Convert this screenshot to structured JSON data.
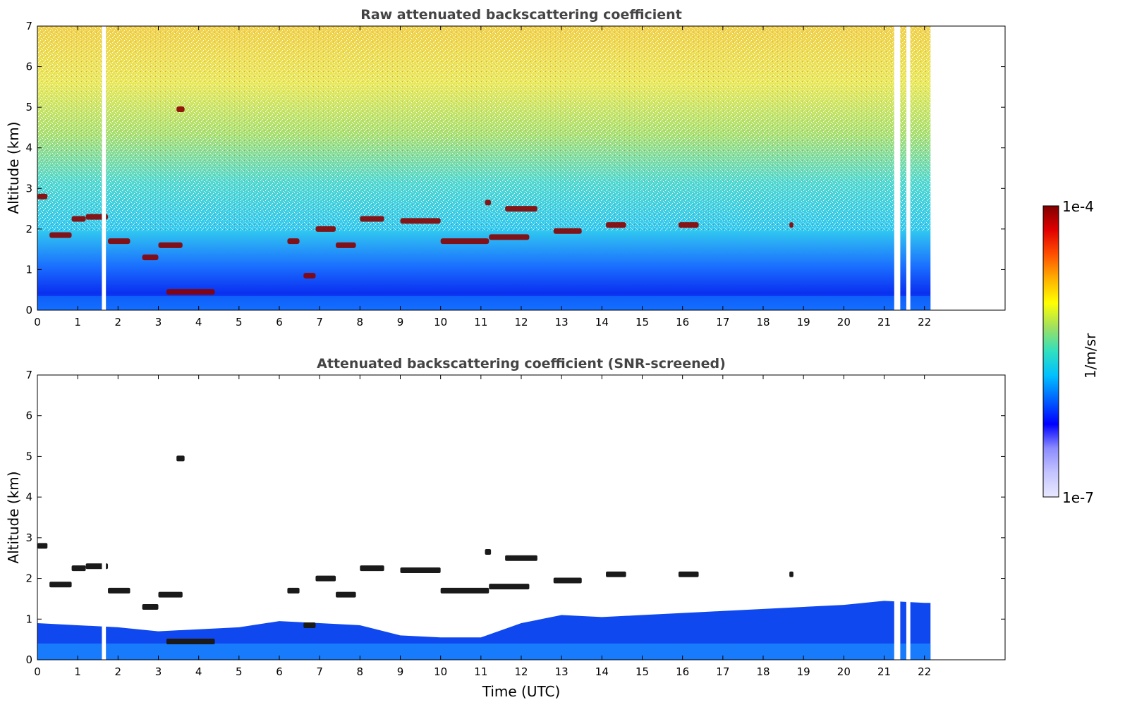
{
  "chart_data": [
    {
      "type": "heatmap",
      "title": "Raw attenuated backscattering coefficient",
      "xlabel": "",
      "ylabel": "Altitude (km)",
      "xlim": [
        0,
        24
      ],
      "ylim": [
        0,
        7
      ],
      "x_ticks": [
        0,
        1,
        2,
        3,
        4,
        5,
        6,
        7,
        8,
        9,
        10,
        11,
        12,
        13,
        14,
        15,
        16,
        17,
        18,
        19,
        20,
        21,
        22
      ],
      "y_ticks": [
        0,
        1,
        2,
        3,
        4,
        5,
        6,
        7
      ],
      "data_time_range": [
        0,
        22.15
      ],
      "data_gaps": [
        [
          1.6,
          1.7
        ],
        [
          21.25,
          21.4
        ],
        [
          21.55,
          21.65
        ]
      ],
      "cloud_layers": [
        {
          "t": [
            0.0,
            0.25
          ],
          "alt": 2.8
        },
        {
          "t": [
            0.3,
            0.85
          ],
          "alt": 1.85
        },
        {
          "t": [
            0.85,
            1.2
          ],
          "alt": 2.25
        },
        {
          "t": [
            1.2,
            1.75
          ],
          "alt": 2.3
        },
        {
          "t": [
            1.75,
            2.3
          ],
          "alt": 1.7
        },
        {
          "t": [
            2.6,
            3.0
          ],
          "alt": 1.3
        },
        {
          "t": [
            3.0,
            3.6
          ],
          "alt": 1.6
        },
        {
          "t": [
            3.45,
            3.65
          ],
          "alt": 4.95
        },
        {
          "t": [
            3.2,
            4.4
          ],
          "alt": 0.45
        },
        {
          "t": [
            6.2,
            6.5
          ],
          "alt": 1.7
        },
        {
          "t": [
            6.6,
            6.9
          ],
          "alt": 0.85
        },
        {
          "t": [
            6.9,
            7.4
          ],
          "alt": 2.0
        },
        {
          "t": [
            7.4,
            7.9
          ],
          "alt": 1.6
        },
        {
          "t": [
            8.0,
            8.6
          ],
          "alt": 2.25
        },
        {
          "t": [
            9.0,
            10.0
          ],
          "alt": 2.2
        },
        {
          "t": [
            10.0,
            11.2
          ],
          "alt": 1.7
        },
        {
          "t": [
            11.1,
            11.25
          ],
          "alt": 2.65
        },
        {
          "t": [
            11.6,
            12.4
          ],
          "alt": 2.5
        },
        {
          "t": [
            11.2,
            12.2
          ],
          "alt": 1.8
        },
        {
          "t": [
            12.8,
            13.5
          ],
          "alt": 1.95
        },
        {
          "t": [
            14.1,
            14.6
          ],
          "alt": 2.1
        },
        {
          "t": [
            15.9,
            16.4
          ],
          "alt": 2.1
        },
        {
          "t": [
            18.65,
            18.75
          ],
          "alt": 2.1
        }
      ]
    },
    {
      "type": "heatmap",
      "title": "Attenuated backscattering coefficient (SNR-screened)",
      "xlabel": "Time (UTC)",
      "ylabel": "Altitude (km)",
      "xlim": [
        0,
        24
      ],
      "ylim": [
        0,
        7
      ],
      "x_ticks": [
        0,
        1,
        2,
        3,
        4,
        5,
        6,
        7,
        8,
        9,
        10,
        11,
        12,
        13,
        14,
        15,
        16,
        17,
        18,
        19,
        20,
        21,
        22
      ],
      "y_ticks": [
        0,
        1,
        2,
        3,
        4,
        5,
        6,
        7
      ],
      "data_time_range": [
        0,
        22.15
      ],
      "data_gaps": [
        [
          1.6,
          1.7
        ],
        [
          21.25,
          21.4
        ],
        [
          21.55,
          21.65
        ]
      ],
      "screened_boundary_layer_top": [
        [
          0,
          0.9
        ],
        [
          1,
          0.85
        ],
        [
          2,
          0.8
        ],
        [
          3,
          0.7
        ],
        [
          4,
          0.75
        ],
        [
          5,
          0.8
        ],
        [
          6,
          0.95
        ],
        [
          7,
          0.9
        ],
        [
          8,
          0.85
        ],
        [
          9,
          0.6
        ],
        [
          10,
          0.55
        ],
        [
          11,
          0.55
        ],
        [
          12,
          0.9
        ],
        [
          13,
          1.1
        ],
        [
          14,
          1.05
        ],
        [
          15,
          1.1
        ],
        [
          16,
          1.15
        ],
        [
          17,
          1.2
        ],
        [
          18,
          1.25
        ],
        [
          19,
          1.3
        ],
        [
          20,
          1.35
        ],
        [
          21,
          1.45
        ],
        [
          22,
          1.4
        ]
      ]
    }
  ],
  "colorbar": {
    "label": "1/m/sr",
    "max_label": "1e-4",
    "min_label": "1e-7",
    "colors": [
      "#e8e8ff",
      "#c4c4ff",
      "#8c8cff",
      "#0000ff",
      "#0060ff",
      "#00c0ff",
      "#30e0c0",
      "#a0e060",
      "#ffff00",
      "#ffb000",
      "#ff5000",
      "#e00000",
      "#800000"
    ]
  }
}
